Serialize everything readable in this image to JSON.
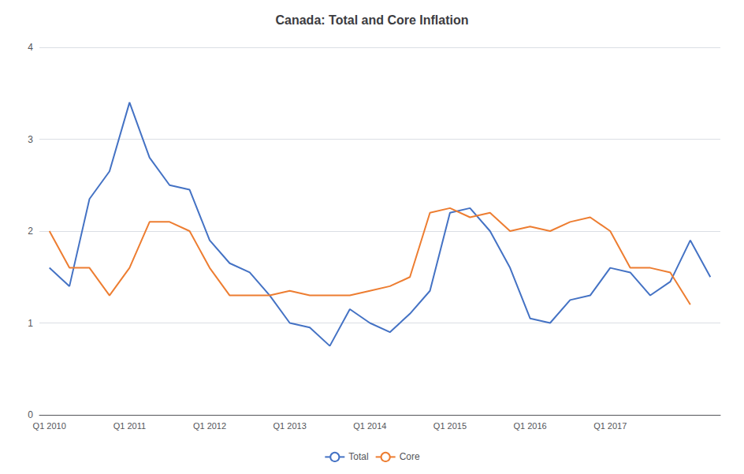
{
  "chart_data": {
    "type": "line",
    "title": "Canada: Total and Core Inflation",
    "categories": [
      "Q1 2010",
      null,
      null,
      null,
      "Q1 2011",
      null,
      null,
      null,
      "Q1 2012",
      null,
      null,
      null,
      "Q1 2013",
      null,
      null,
      null,
      "Q1 2014",
      null,
      null,
      null,
      "Q1 2015",
      null,
      null,
      null,
      "Q1 2016",
      null,
      null,
      null,
      "Q1 2017",
      null,
      null,
      null,
      null,
      null
    ],
    "series": [
      {
        "name": "Total",
        "color": "#4472C4",
        "values": [
          1.6,
          1.4,
          2.35,
          2.65,
          3.4,
          2.8,
          2.5,
          2.45,
          1.9,
          1.65,
          1.55,
          1.3,
          1.0,
          0.95,
          0.75,
          1.15,
          1.0,
          0.9,
          1.1,
          1.35,
          2.2,
          2.25,
          2.0,
          1.6,
          1.05,
          1.0,
          1.25,
          1.3,
          1.6,
          1.55,
          1.3,
          1.45,
          1.9,
          1.5
        ]
      },
      {
        "name": "Core",
        "color": "#ED7D31",
        "values": [
          2.0,
          1.6,
          1.6,
          1.3,
          1.6,
          2.1,
          2.1,
          2.0,
          1.6,
          1.3,
          1.3,
          1.3,
          1.35,
          1.3,
          1.3,
          1.3,
          1.35,
          1.4,
          1.5,
          2.2,
          2.25,
          2.15,
          2.2,
          2.0,
          2.05,
          2.0,
          2.1,
          2.15,
          2.0,
          1.6,
          1.6,
          1.55,
          1.2,
          null
        ]
      }
    ],
    "ylim": [
      0,
      4
    ],
    "yticks": [
      0,
      1,
      2,
      3,
      4
    ],
    "grid": true,
    "legend": "bottom"
  }
}
